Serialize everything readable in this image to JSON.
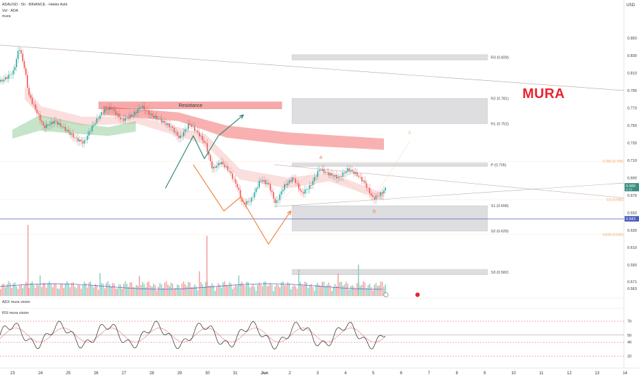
{
  "header": {
    "symbol": "ADAUSD · 5h · BINANCE · Heikin Ashi",
    "indicator1": "Vol · ADA",
    "indicator2": "mura",
    "currency": "USD"
  },
  "logo": "MURA",
  "panes": {
    "adx_label": "ADX mura vision",
    "rsi_label": "RSI mura vision"
  },
  "colors": {
    "bull": "#26a69a",
    "bear": "#ef5350",
    "resistance_fill": "#f7a9a9",
    "zone_fill": "#d6d4d8",
    "forecast_green": "#1f7f6c",
    "forecast_orange": "#f07a32",
    "level_line": "#4a5fbd",
    "fib_text": "#f0a560",
    "logo": "#e8232d"
  },
  "chart_data": {
    "type": "candlestick",
    "yaxis": {
      "min": 0.556,
      "max": 0.878,
      "ticks": [
        "0.850",
        "0.830",
        "0.810",
        "0.790",
        "0.770",
        "0.750",
        "0.730",
        "0.710",
        "0.690",
        "0.670",
        "0.650",
        "0.630",
        "0.610",
        "0.590",
        "0.571",
        "0.563"
      ]
    },
    "xaxis": {
      "ticks": [
        "23",
        "24",
        "25",
        "26",
        "27",
        "28",
        "29",
        "30",
        "31",
        "Jun",
        "2",
        "3",
        "4",
        "5",
        "6",
        "7",
        "8",
        "9",
        "10",
        "11",
        "12",
        "13",
        "14"
      ]
    },
    "current_price": "0.680",
    "current_price_sub": "0.73",
    "horizontal_level": "0.643",
    "pivots": [
      {
        "label": "R3 (0.828)",
        "value": 0.828
      },
      {
        "label": "R2 (0.781)",
        "value": 0.781
      },
      {
        "label": "R1 (0.752)",
        "value": 0.752
      },
      {
        "label": "P (0.705)",
        "value": 0.705
      },
      {
        "label": "S1 (0.658)",
        "value": 0.658
      },
      {
        "label": "S2 (0.629)",
        "value": 0.629
      },
      {
        "label": "S3 (0.582)",
        "value": 0.582
      }
    ],
    "fib_levels": [
      {
        "label": "0.382 (0.709)",
        "value": 0.709
      },
      {
        "label": "0.5 (0.665)",
        "value": 0.665
      },
      {
        "label": "0.618 (0.625)",
        "value": 0.625
      }
    ],
    "annotations": [
      {
        "text": "Resistance"
      },
      {
        "text": "a"
      },
      {
        "text": "b"
      },
      {
        "text": "c"
      }
    ],
    "forecast_green": [
      [
        0.678,
        5.5
      ],
      [
        0.738,
        6.5
      ],
      [
        0.712,
        6.9
      ],
      [
        0.738,
        7.4
      ],
      [
        0.762,
        8.3
      ]
    ],
    "forecast_orange": [
      [
        0.705,
        6.5
      ],
      [
        0.652,
        7.6
      ],
      [
        0.668,
        8.2
      ],
      [
        0.614,
        9.2
      ],
      [
        0.652,
        10.0
      ]
    ],
    "rsi_ticks": [
      "70",
      "50",
      "40",
      "20"
    ],
    "icons": [
      "pivot-badge-icon",
      "flag-icon"
    ]
  }
}
